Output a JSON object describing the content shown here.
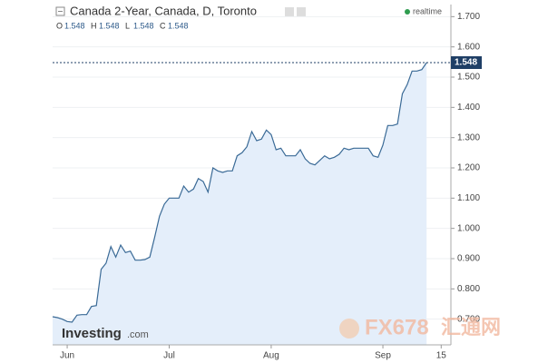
{
  "chart_data": {
    "type": "area",
    "title": "Canada 2-Year, Canada, D, Toronto",
    "ohlc": [
      {
        "label": "O",
        "value": 1.548
      },
      {
        "label": "H",
        "value": 1.548
      },
      {
        "label": "L",
        "value": 1.548
      },
      {
        "label": "C",
        "value": 1.548
      }
    ],
    "status": "realtime",
    "watermarks": {
      "brand": "Investing",
      "brand_suffix": ".com",
      "site": "FX678",
      "site_cn": "汇通网"
    },
    "categories": [
      null,
      null,
      null,
      "Jun",
      null,
      null,
      null,
      null,
      null,
      null,
      null,
      null,
      null,
      null,
      null,
      null,
      null,
      null,
      null,
      null,
      null,
      null,
      null,
      null,
      "Jul",
      null,
      null,
      null,
      null,
      null,
      null,
      null,
      null,
      null,
      null,
      null,
      null,
      null,
      null,
      null,
      null,
      null,
      null,
      null,
      null,
      "Aug",
      null,
      null,
      null,
      null,
      null,
      null,
      null,
      null,
      null,
      null,
      null,
      null,
      null,
      null,
      null,
      null,
      null,
      null,
      null,
      null,
      null,
      null,
      "Sep",
      null,
      null,
      null,
      null,
      null,
      null,
      null,
      null,
      null,
      null,
      null,
      "15",
      null,
      null
    ],
    "values": [
      0.708,
      0.705,
      0.7,
      0.692,
      0.69,
      0.713,
      0.715,
      0.715,
      0.742,
      0.745,
      0.865,
      0.885,
      0.94,
      0.905,
      0.945,
      0.92,
      0.925,
      0.895,
      0.895,
      0.897,
      0.905,
      0.97,
      1.04,
      1.08,
      1.1,
      1.1,
      1.1,
      1.14,
      1.12,
      1.13,
      1.165,
      1.155,
      1.12,
      1.2,
      1.19,
      1.185,
      1.19,
      1.19,
      1.24,
      1.25,
      1.27,
      1.32,
      1.29,
      1.295,
      1.325,
      1.31,
      1.26,
      1.265,
      1.24,
      1.24,
      1.24,
      1.26,
      1.23,
      1.215,
      1.21,
      1.225,
      1.24,
      1.23,
      1.235,
      1.245,
      1.265,
      1.26,
      1.265,
      1.265,
      1.265,
      1.265,
      1.24,
      1.235,
      1.275,
      1.34,
      1.34,
      1.345,
      1.445,
      1.475,
      1.52,
      1.52,
      1.525,
      1.548,
      null,
      null,
      null,
      null,
      null
    ],
    "color": "#3a6a96",
    "fill": "#e4eefa",
    "ylim": [
      0.615,
      1.74
    ],
    "yticks": [
      {
        "value": 0.7,
        "label": "0.700"
      },
      {
        "value": 0.8,
        "label": "0.800"
      },
      {
        "value": 0.9,
        "label": "0.900"
      },
      {
        "value": 1.0,
        "label": "1.000"
      },
      {
        "value": 1.1,
        "label": "1.100"
      },
      {
        "value": 1.2,
        "label": "1.200"
      },
      {
        "value": 1.3,
        "label": "1.300"
      },
      {
        "value": 1.4,
        "label": "1.400"
      },
      {
        "value": 1.5,
        "label": "1.500"
      },
      {
        "value": 1.6,
        "label": "1.600"
      },
      {
        "value": 1.7,
        "label": "1.700"
      }
    ],
    "grid": true
  }
}
